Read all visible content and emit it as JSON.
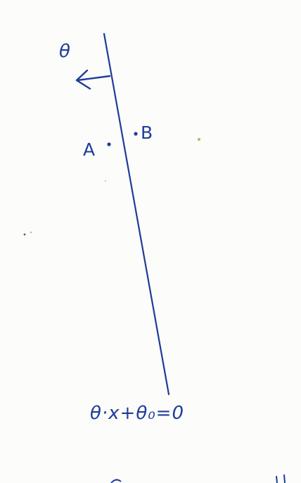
{
  "diagram": {
    "normal_label": "θ",
    "point_a_label": "A",
    "point_b_label": "B",
    "equation_label": "θ·x+θ₀=0",
    "ink_color": "#1f3c9a",
    "background_color": "#fcfcfa"
  }
}
